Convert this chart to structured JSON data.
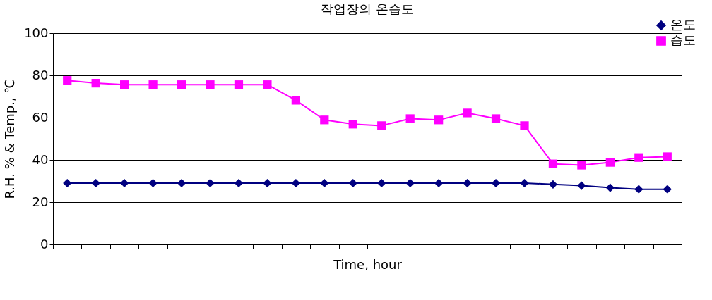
{
  "chart_data": {
    "type": "line",
    "title": "작업장의 온습도",
    "xlabel": "Time, hour",
    "ylabel": "R.H. % & Temp., ℃",
    "categories": [
      null,
      null,
      null,
      null,
      null,
      null,
      null,
      null,
      null,
      null,
      null,
      null,
      null,
      null,
      null,
      null,
      null,
      null,
      null,
      null,
      null,
      null
    ],
    "series": [
      {
        "name": "온도",
        "color": "#000080",
        "marker": "diamond",
        "values": [
          29,
          29,
          29,
          29,
          29,
          29,
          29,
          29,
          29,
          29,
          29,
          29,
          29,
          29,
          29,
          29,
          29,
          28.4,
          27.8,
          26.8,
          26.1,
          26.1
        ]
      },
      {
        "name": "습도",
        "color": "#ff00ff",
        "marker": "square",
        "values": [
          77.6,
          76.3,
          75.6,
          75.6,
          75.6,
          75.6,
          75.6,
          75.6,
          68.2,
          58.9,
          56.9,
          56.2,
          59.5,
          58.9,
          62.2,
          59.5,
          56.2,
          38.1,
          37.5,
          38.8,
          41.1,
          41.5
        ]
      }
    ],
    "ylim": [
      0,
      100
    ],
    "yticks": [
      0,
      20,
      40,
      60,
      80,
      100
    ],
    "grid": "y",
    "legend": "top right"
  }
}
